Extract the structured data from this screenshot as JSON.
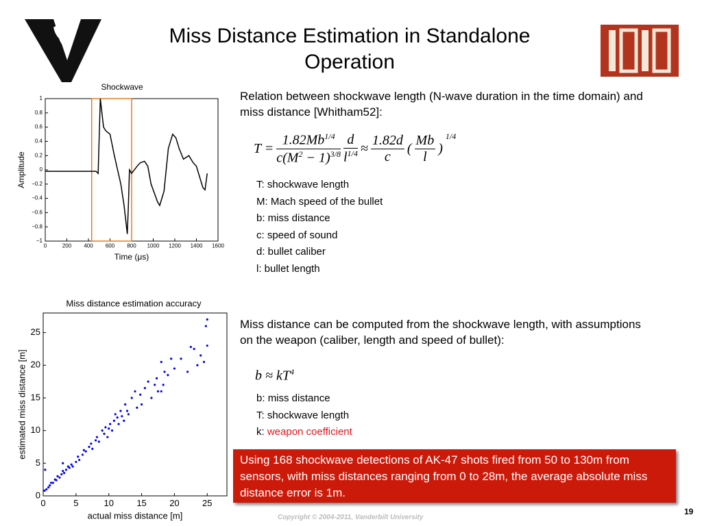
{
  "title": "Miss Distance Estimation in Standalone Operation",
  "para1": "Relation between shockwave length (N-wave duration in the time domain) and miss distance [Whitham52]:",
  "formula1": {
    "lhs": "T =",
    "frac1_num": "1.82Mb",
    "frac1_num_exp": "1/4",
    "frac1_den": "c(M",
    "frac1_den_exp1": "2",
    "frac1_den_mid": " − 1)",
    "frac1_den_exp2": "3/8",
    "frac2_num": "d",
    "frac2_den": "l",
    "frac2_den_exp": "1/4",
    "approx": "≈",
    "frac3_num": "1.82d",
    "frac3_den": "c",
    "paren_open": "(",
    "frac4_num": "Mb",
    "frac4_den": "l",
    "paren_close": ")",
    "exp": "1/4"
  },
  "definitions1": [
    "T: shockwave length",
    "M: Mach speed of the bullet",
    "b: miss distance",
    "c: speed of sound",
    "d: bullet caliber",
    "l: bullet length"
  ],
  "para2": "Miss distance can be computed from the shockwave length, with assumptions on the weapon (caliber, length and speed of bullet):",
  "formula2": {
    "text": "b ≈ kT",
    "exp": "4"
  },
  "definitions2": [
    {
      "term": "b:",
      "desc": "miss distance"
    },
    {
      "term": "T:",
      "desc": "shockwave length"
    },
    {
      "term": "k:",
      "desc": "weapon coefficient",
      "color": "#e8141b"
    }
  ],
  "callout": "Using 168 shockwave detections of AK-47 shots fired from 50 to 130m from sensors, with miss distances ranging from 0 to 28m, the average absolute miss distance error is 1m.",
  "footer": "Copyright © 2004-2011, Vanderbilt University",
  "page_number": "19",
  "chart_data": [
    {
      "type": "line",
      "title": "Shockwave",
      "xlabel": "Time (μs)",
      "ylabel": "Amplitude",
      "color": "#000000",
      "x": [
        0,
        100,
        200,
        300,
        400,
        470,
        490,
        510,
        540,
        560,
        600,
        640,
        700,
        730,
        760,
        770,
        780,
        800,
        850,
        880,
        920,
        950,
        980,
        1040,
        1060,
        1100,
        1140,
        1180,
        1210,
        1240,
        1280,
        1330,
        1370,
        1400,
        1430,
        1460,
        1480,
        1500
      ],
      "values": [
        -0.02,
        -0.02,
        -0.02,
        -0.02,
        -0.02,
        -0.02,
        -0.05,
        1,
        0.6,
        0.55,
        0.5,
        0.2,
        -0.2,
        -0.5,
        -0.9,
        -0.5,
        0,
        -0.05,
        0.05,
        0.1,
        0.12,
        0.05,
        -0.2,
        -0.45,
        -0.5,
        -0.3,
        0.3,
        0.5,
        0.45,
        0.3,
        0.15,
        0.2,
        0.1,
        0.05,
        -0.1,
        -0.25,
        -0.28,
        -0.05
      ],
      "xlim": [
        0,
        1600
      ],
      "ylim": [
        -1,
        1
      ],
      "xticks": [
        0,
        200,
        400,
        600,
        800,
        1000,
        1200,
        1400,
        1600
      ],
      "yticks": [
        {
          "value": -1,
          "label": "−1"
        },
        {
          "value": -0.8,
          "label": "−0.8"
        },
        {
          "value": -0.6,
          "label": "−0.6"
        },
        {
          "value": -0.4,
          "label": "−0.4"
        },
        {
          "value": -0.2,
          "label": "−0.2"
        },
        0,
        0.2,
        0.4,
        0.6,
        0.8,
        1
      ],
      "highlight": {
        "x": [
          430,
          800
        ],
        "color": "#e07b20"
      }
    },
    {
      "type": "scatter",
      "title": "Miss distance estimation accuracy",
      "xlabel": "actual miss distance [m]",
      "ylabel": "estimated miss distance [m]",
      "color": "#0000ff",
      "x": [
        0.2,
        0.3,
        0.5,
        0.8,
        1,
        1.2,
        1.5,
        1.8,
        2,
        2.2,
        2.5,
        2.8,
        3,
        3.2,
        3.5,
        3.8,
        4,
        4.3,
        4.5,
        5,
        5.3,
        5.5,
        6,
        6.2,
        6.5,
        7,
        7.3,
        7.5,
        8,
        8.2,
        8.5,
        9,
        9.3,
        9.5,
        9.8,
        10,
        10.2,
        10.5,
        10.8,
        11,
        11.3,
        11.5,
        11.8,
        12,
        12.3,
        12.5,
        12.8,
        13,
        13.5,
        14,
        14.3,
        14.8,
        15,
        15.5,
        16,
        16.5,
        17,
        17.3,
        17.5,
        18,
        18.3,
        18.5,
        19,
        19.5,
        20,
        21,
        22,
        22.5,
        23,
        23.5,
        24,
        24.5,
        25,
        3,
        18,
        25,
        24.8
      ],
      "values": [
        0.8,
        4,
        1,
        1.3,
        1.6,
        2,
        2,
        2.5,
        2.4,
        3,
        2.8,
        3.3,
        3.8,
        3.5,
        4,
        4.5,
        4.3,
        4.8,
        4.5,
        5.2,
        6,
        5.5,
        6.3,
        7,
        6.8,
        7.5,
        8,
        7.2,
        8.5,
        9,
        8.3,
        10,
        9.5,
        10.5,
        9,
        10.3,
        11,
        10,
        11.5,
        12.5,
        12,
        11,
        13,
        12.2,
        11.5,
        14,
        13,
        12.5,
        15,
        16,
        13.5,
        15.5,
        14,
        16.5,
        17.5,
        15,
        17,
        18,
        16,
        20.5,
        17,
        19,
        18.5,
        21,
        19.5,
        21,
        19,
        22.8,
        22.5,
        20,
        21.5,
        20.5,
        27,
        5,
        16,
        23,
        26
      ],
      "xlim": [
        0,
        28
      ],
      "ylim": [
        0,
        28
      ],
      "xticks": [
        0,
        5,
        10,
        15,
        20,
        25
      ],
      "yticks": [
        0,
        5,
        10,
        15,
        20,
        25
      ]
    }
  ]
}
